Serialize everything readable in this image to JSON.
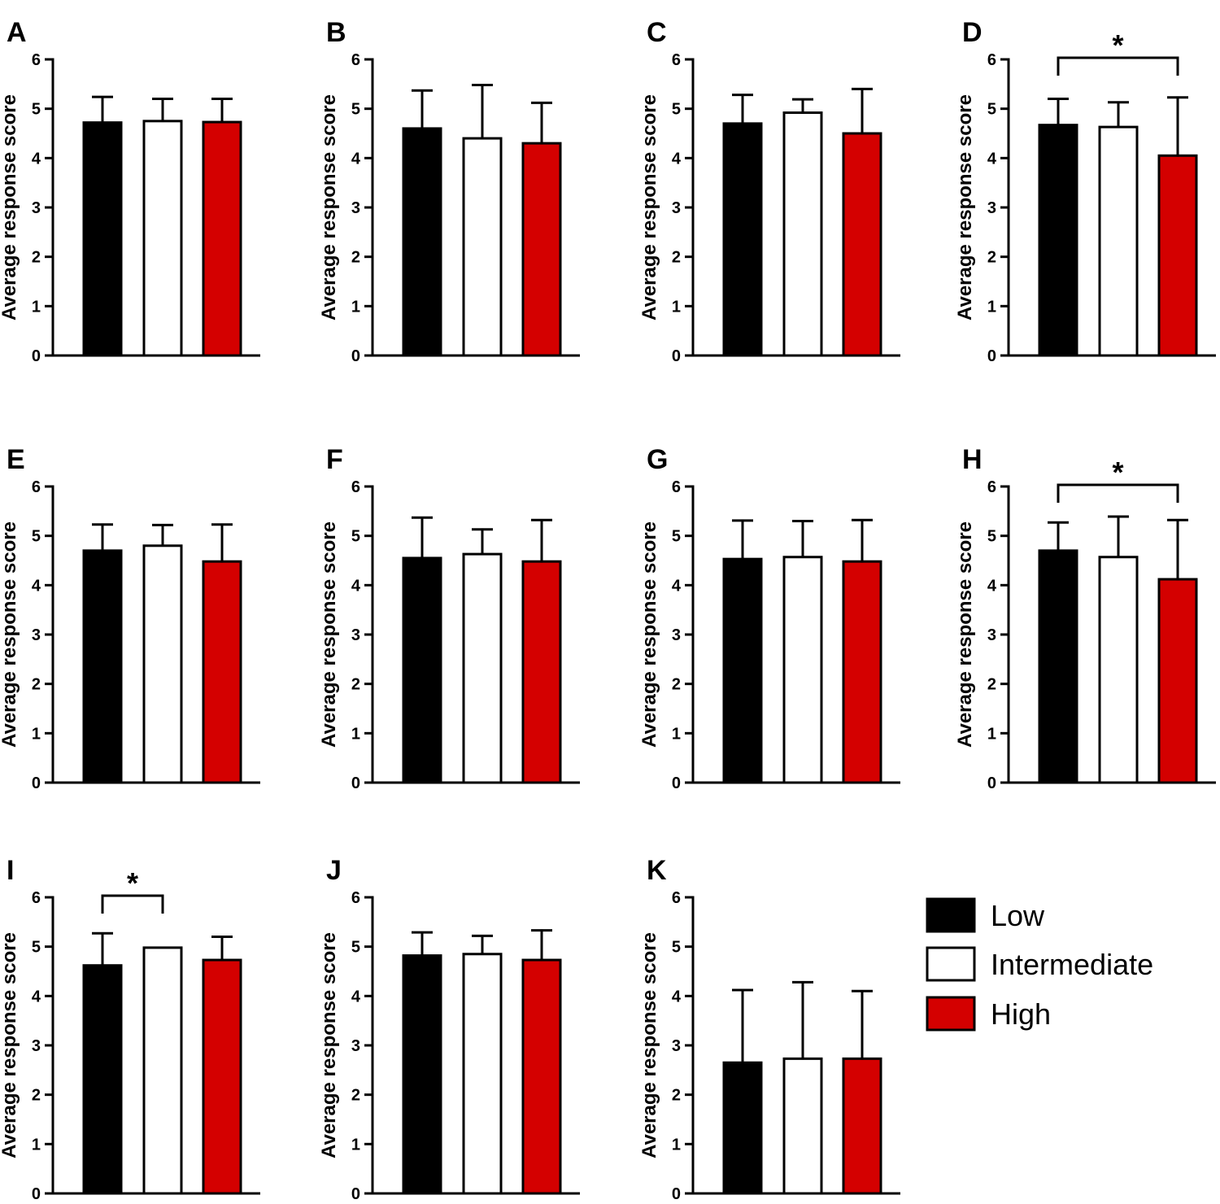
{
  "legend": {
    "items": [
      {
        "label": "Low",
        "color": "#000000"
      },
      {
        "label": "Intermediate",
        "color": "#ffffff"
      },
      {
        "label": "High",
        "color": "#d40000"
      }
    ]
  },
  "chart_data": [
    {
      "type": "bar",
      "panel": "A",
      "ylabel": "Average response score",
      "ylim": [
        0,
        6
      ],
      "yticks": [
        "0",
        "1",
        "2",
        "3",
        "4",
        "5",
        "6"
      ],
      "categories": [
        "Low",
        "Intermediate",
        "High"
      ],
      "values": [
        4.72,
        4.75,
        4.73
      ],
      "error": [
        0.52,
        0.45,
        0.47
      ],
      "significance": null
    },
    {
      "type": "bar",
      "panel": "B",
      "ylabel": "Average response score",
      "ylim": [
        0,
        6
      ],
      "yticks": [
        "0",
        "1",
        "2",
        "3",
        "4",
        "5",
        "6"
      ],
      "categories": [
        "Low",
        "Intermediate",
        "High"
      ],
      "values": [
        4.6,
        4.4,
        4.3
      ],
      "error": [
        0.77,
        1.08,
        0.82
      ],
      "significance": null
    },
    {
      "type": "bar",
      "panel": "C",
      "ylabel": "Average response score",
      "ylim": [
        0,
        6
      ],
      "yticks": [
        "0",
        "1",
        "2",
        "3",
        "4",
        "5",
        "6"
      ],
      "categories": [
        "Low",
        "Intermediate",
        "High"
      ],
      "values": [
        4.7,
        4.92,
        4.5
      ],
      "error": [
        0.58,
        0.27,
        0.9
      ],
      "significance": null
    },
    {
      "type": "bar",
      "panel": "D",
      "ylabel": "Average response score",
      "ylim": [
        0,
        6
      ],
      "yticks": [
        "0",
        "1",
        "2",
        "3",
        "4",
        "5",
        "6"
      ],
      "categories": [
        "Low",
        "Intermediate",
        "High"
      ],
      "values": [
        4.67,
        4.63,
        4.05
      ],
      "error": [
        0.53,
        0.5,
        1.18
      ],
      "significance": {
        "from": 0,
        "to": 2,
        "label": "*"
      }
    },
    {
      "type": "bar",
      "panel": "E",
      "ylabel": "Average response score",
      "ylim": [
        0,
        6
      ],
      "yticks": [
        "0",
        "1",
        "2",
        "3",
        "4",
        "5",
        "6"
      ],
      "categories": [
        "Low",
        "Intermediate",
        "High"
      ],
      "values": [
        4.7,
        4.8,
        4.48
      ],
      "error": [
        0.53,
        0.42,
        0.75
      ],
      "significance": null
    },
    {
      "type": "bar",
      "panel": "F",
      "ylabel": "Average response score",
      "ylim": [
        0,
        6
      ],
      "yticks": [
        "0",
        "1",
        "2",
        "3",
        "4",
        "5",
        "6"
      ],
      "categories": [
        "Low",
        "Intermediate",
        "High"
      ],
      "values": [
        4.55,
        4.63,
        4.48
      ],
      "error": [
        0.82,
        0.5,
        0.84
      ],
      "significance": null
    },
    {
      "type": "bar",
      "panel": "G",
      "ylabel": "Average response score",
      "ylim": [
        0,
        6
      ],
      "yticks": [
        "0",
        "1",
        "2",
        "3",
        "4",
        "5",
        "6"
      ],
      "categories": [
        "Low",
        "Intermediate",
        "High"
      ],
      "values": [
        4.53,
        4.57,
        4.48
      ],
      "error": [
        0.78,
        0.73,
        0.84
      ],
      "significance": null
    },
    {
      "type": "bar",
      "panel": "H",
      "ylabel": "Average response score",
      "ylim": [
        0,
        6
      ],
      "yticks": [
        "0",
        "1",
        "2",
        "3",
        "4",
        "5",
        "6"
      ],
      "categories": [
        "Low",
        "Intermediate",
        "High"
      ],
      "values": [
        4.7,
        4.57,
        4.12
      ],
      "error": [
        0.57,
        0.82,
        1.2
      ],
      "significance": {
        "from": 0,
        "to": 2,
        "label": "*"
      }
    },
    {
      "type": "bar",
      "panel": "I",
      "ylabel": "Average response score",
      "ylim": [
        0,
        6
      ],
      "yticks": [
        "0",
        "1",
        "2",
        "3",
        "4",
        "5",
        "6"
      ],
      "categories": [
        "Low",
        "Intermediate",
        "High"
      ],
      "values": [
        4.62,
        4.98,
        4.73
      ],
      "error": [
        0.65,
        0.0,
        0.47
      ],
      "significance": {
        "from": 0,
        "to": 1,
        "label": "*"
      }
    },
    {
      "type": "bar",
      "panel": "J",
      "ylabel": "Average response score",
      "ylim": [
        0,
        6
      ],
      "yticks": [
        "0",
        "1",
        "2",
        "3",
        "4",
        "5",
        "6"
      ],
      "categories": [
        "Low",
        "Intermediate",
        "High"
      ],
      "values": [
        4.82,
        4.85,
        4.73
      ],
      "error": [
        0.47,
        0.37,
        0.6
      ],
      "significance": null
    },
    {
      "type": "bar",
      "panel": "K",
      "ylabel": "Average response score",
      "ylim": [
        0,
        6
      ],
      "yticks": [
        "0",
        "1",
        "2",
        "3",
        "4",
        "5",
        "6"
      ],
      "categories": [
        "Low",
        "Intermediate",
        "High"
      ],
      "values": [
        2.65,
        2.73,
        2.73
      ],
      "error": [
        1.47,
        1.55,
        1.37
      ],
      "significance": null
    }
  ]
}
